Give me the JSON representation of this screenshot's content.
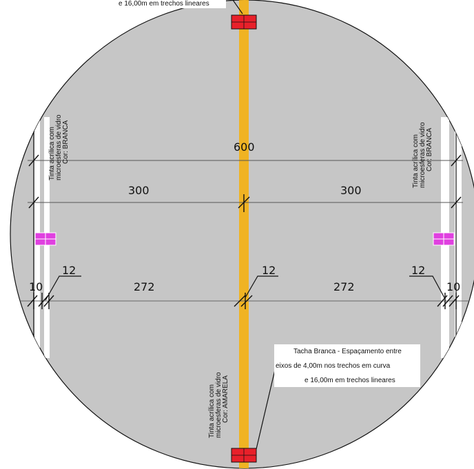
{
  "notes": {
    "top_partial": "e 16,00m em trechos lineares",
    "tacha_line1": "Tacha Branca - Espaçamento entre",
    "tacha_line2": "eixos de 4,00m nos trechos em curva",
    "tacha_line3": "e 16,00m em trechos lineares"
  },
  "paint_left": {
    "line1": "Tinta acrílica com",
    "line2": "microesferas de vidro",
    "line3": "Cor: BRANCA"
  },
  "paint_right": {
    "line1": "Tinta acrílica com",
    "line2": "microesferas de vidro",
    "line3": "Cor: BRANCA"
  },
  "paint_center": {
    "line1": "Tinta acrílica com",
    "line2": "microesferas de vidro",
    "line3": "Cor: AMARELA"
  },
  "dimensions": {
    "total": "600",
    "half_left": "300",
    "half_right": "300",
    "lane_left": "272",
    "lane_right": "272",
    "edge_left": "10",
    "edge_right": "10",
    "stripe_left": "12",
    "stripe_center": "12",
    "stripe_right": "12"
  },
  "colors": {
    "pavement": "#c6c6c6",
    "center_line": "#f0b323",
    "edge_line": "#ffffff",
    "marker_red": "#e8202a",
    "marker_magenta": "#e040e0"
  }
}
